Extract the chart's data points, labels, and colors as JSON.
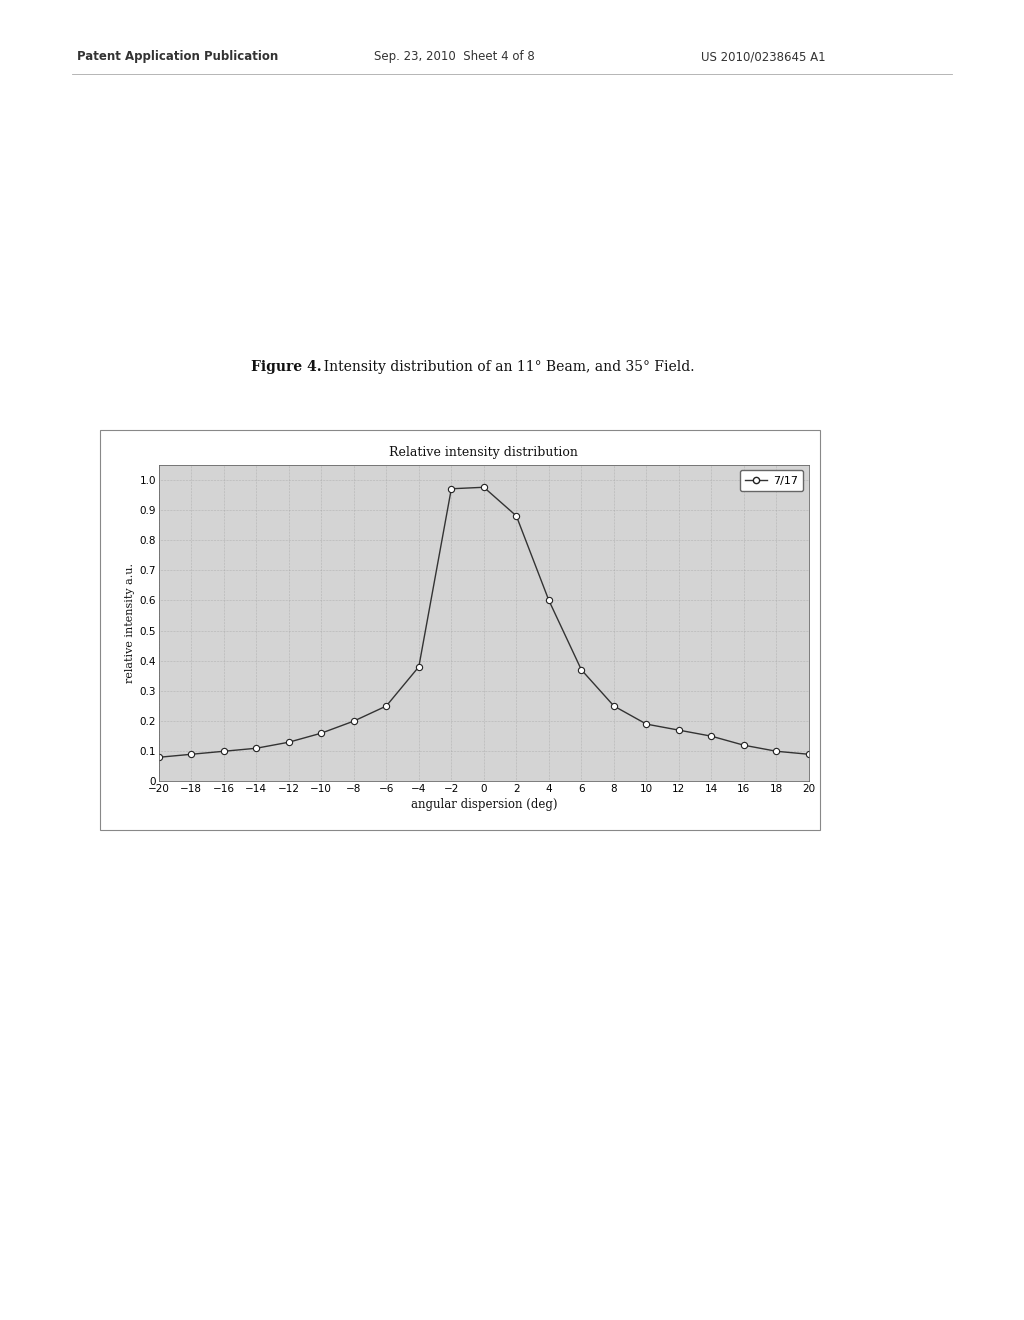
{
  "title": "Relative intensity distribution",
  "xlabel": "angular dispersion (deg)",
  "ylabel": "relative intensity a.u.",
  "figure_title_bold": "Figure 4.",
  "figure_title_normal": "  Intensity distribution of an 11° Beam, and 35° Field.",
  "header_left": "Patent Application Publication",
  "header_mid": "Sep. 23, 2010  Sheet 4 of 8",
  "header_right": "US 2010/0238645 A1",
  "legend_label": "7/17",
  "x_data": [
    -20,
    -18,
    -16,
    -14,
    -12,
    -10,
    -8,
    -6,
    -4,
    -2,
    0,
    2,
    4,
    6,
    8,
    10,
    12,
    14,
    16,
    18,
    20
  ],
  "y_data": [
    0.08,
    0.09,
    0.1,
    0.11,
    0.13,
    0.16,
    0.2,
    0.25,
    0.38,
    0.97,
    0.975,
    0.88,
    0.6,
    0.37,
    0.25,
    0.19,
    0.17,
    0.15,
    0.12,
    0.1,
    0.09
  ],
  "xlim": [
    -20,
    20
  ],
  "ylim": [
    0,
    1.05
  ],
  "xticks": [
    -20,
    -18,
    -16,
    -14,
    -12,
    -10,
    -8,
    -6,
    -4,
    -2,
    0,
    2,
    4,
    6,
    8,
    10,
    12,
    14,
    16,
    18,
    20
  ],
  "yticks": [
    0,
    0.1,
    0.2,
    0.3,
    0.4,
    0.5,
    0.6,
    0.7,
    0.8,
    0.9,
    1.0
  ],
  "line_color": "#333333",
  "marker_facecolor": "white",
  "marker_edgecolor": "#222222",
  "marker_size": 5,
  "grid_color": "#999999",
  "background_color": "#ffffff",
  "plot_bg_color": "#d4d4d4",
  "border_color": "#666666",
  "outer_box_color": "#888888"
}
